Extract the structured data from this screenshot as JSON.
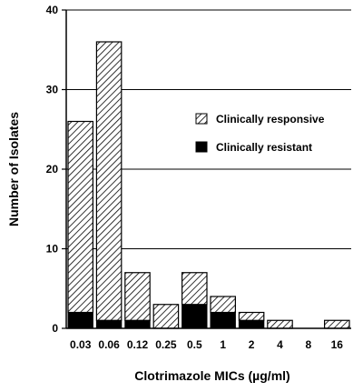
{
  "chart_data": {
    "type": "bar",
    "stacked": true,
    "categories": [
      "0.03",
      "0.06",
      "0.12",
      "0.25",
      "0.5",
      "1",
      "2",
      "4",
      "8",
      "16"
    ],
    "series": [
      {
        "name": "Clinically resistant",
        "pattern": "solid",
        "color": "#000000",
        "values": [
          2,
          1,
          1,
          0,
          3,
          2,
          1,
          0,
          0,
          0
        ]
      },
      {
        "name": "Clinically responsive",
        "pattern": "hatched",
        "color": "#000000",
        "values": [
          24,
          35,
          6,
          3,
          4,
          2,
          1,
          1,
          0,
          1
        ]
      }
    ],
    "totals": [
      26,
      36,
      7,
      3,
      7,
      4,
      2,
      1,
      0,
      1
    ],
    "xlabel": "Clotrimazole  MICs  (µg/ml)",
    "ylabel": "Number  of  Isolates",
    "ylim": [
      0,
      40
    ],
    "yticks": [
      0,
      10,
      20,
      30,
      40
    ],
    "grid": true,
    "legend_position": "right"
  },
  "legend": {
    "responsive_label": "Clinically responsive",
    "resistant_label": "Clinically resistant"
  }
}
